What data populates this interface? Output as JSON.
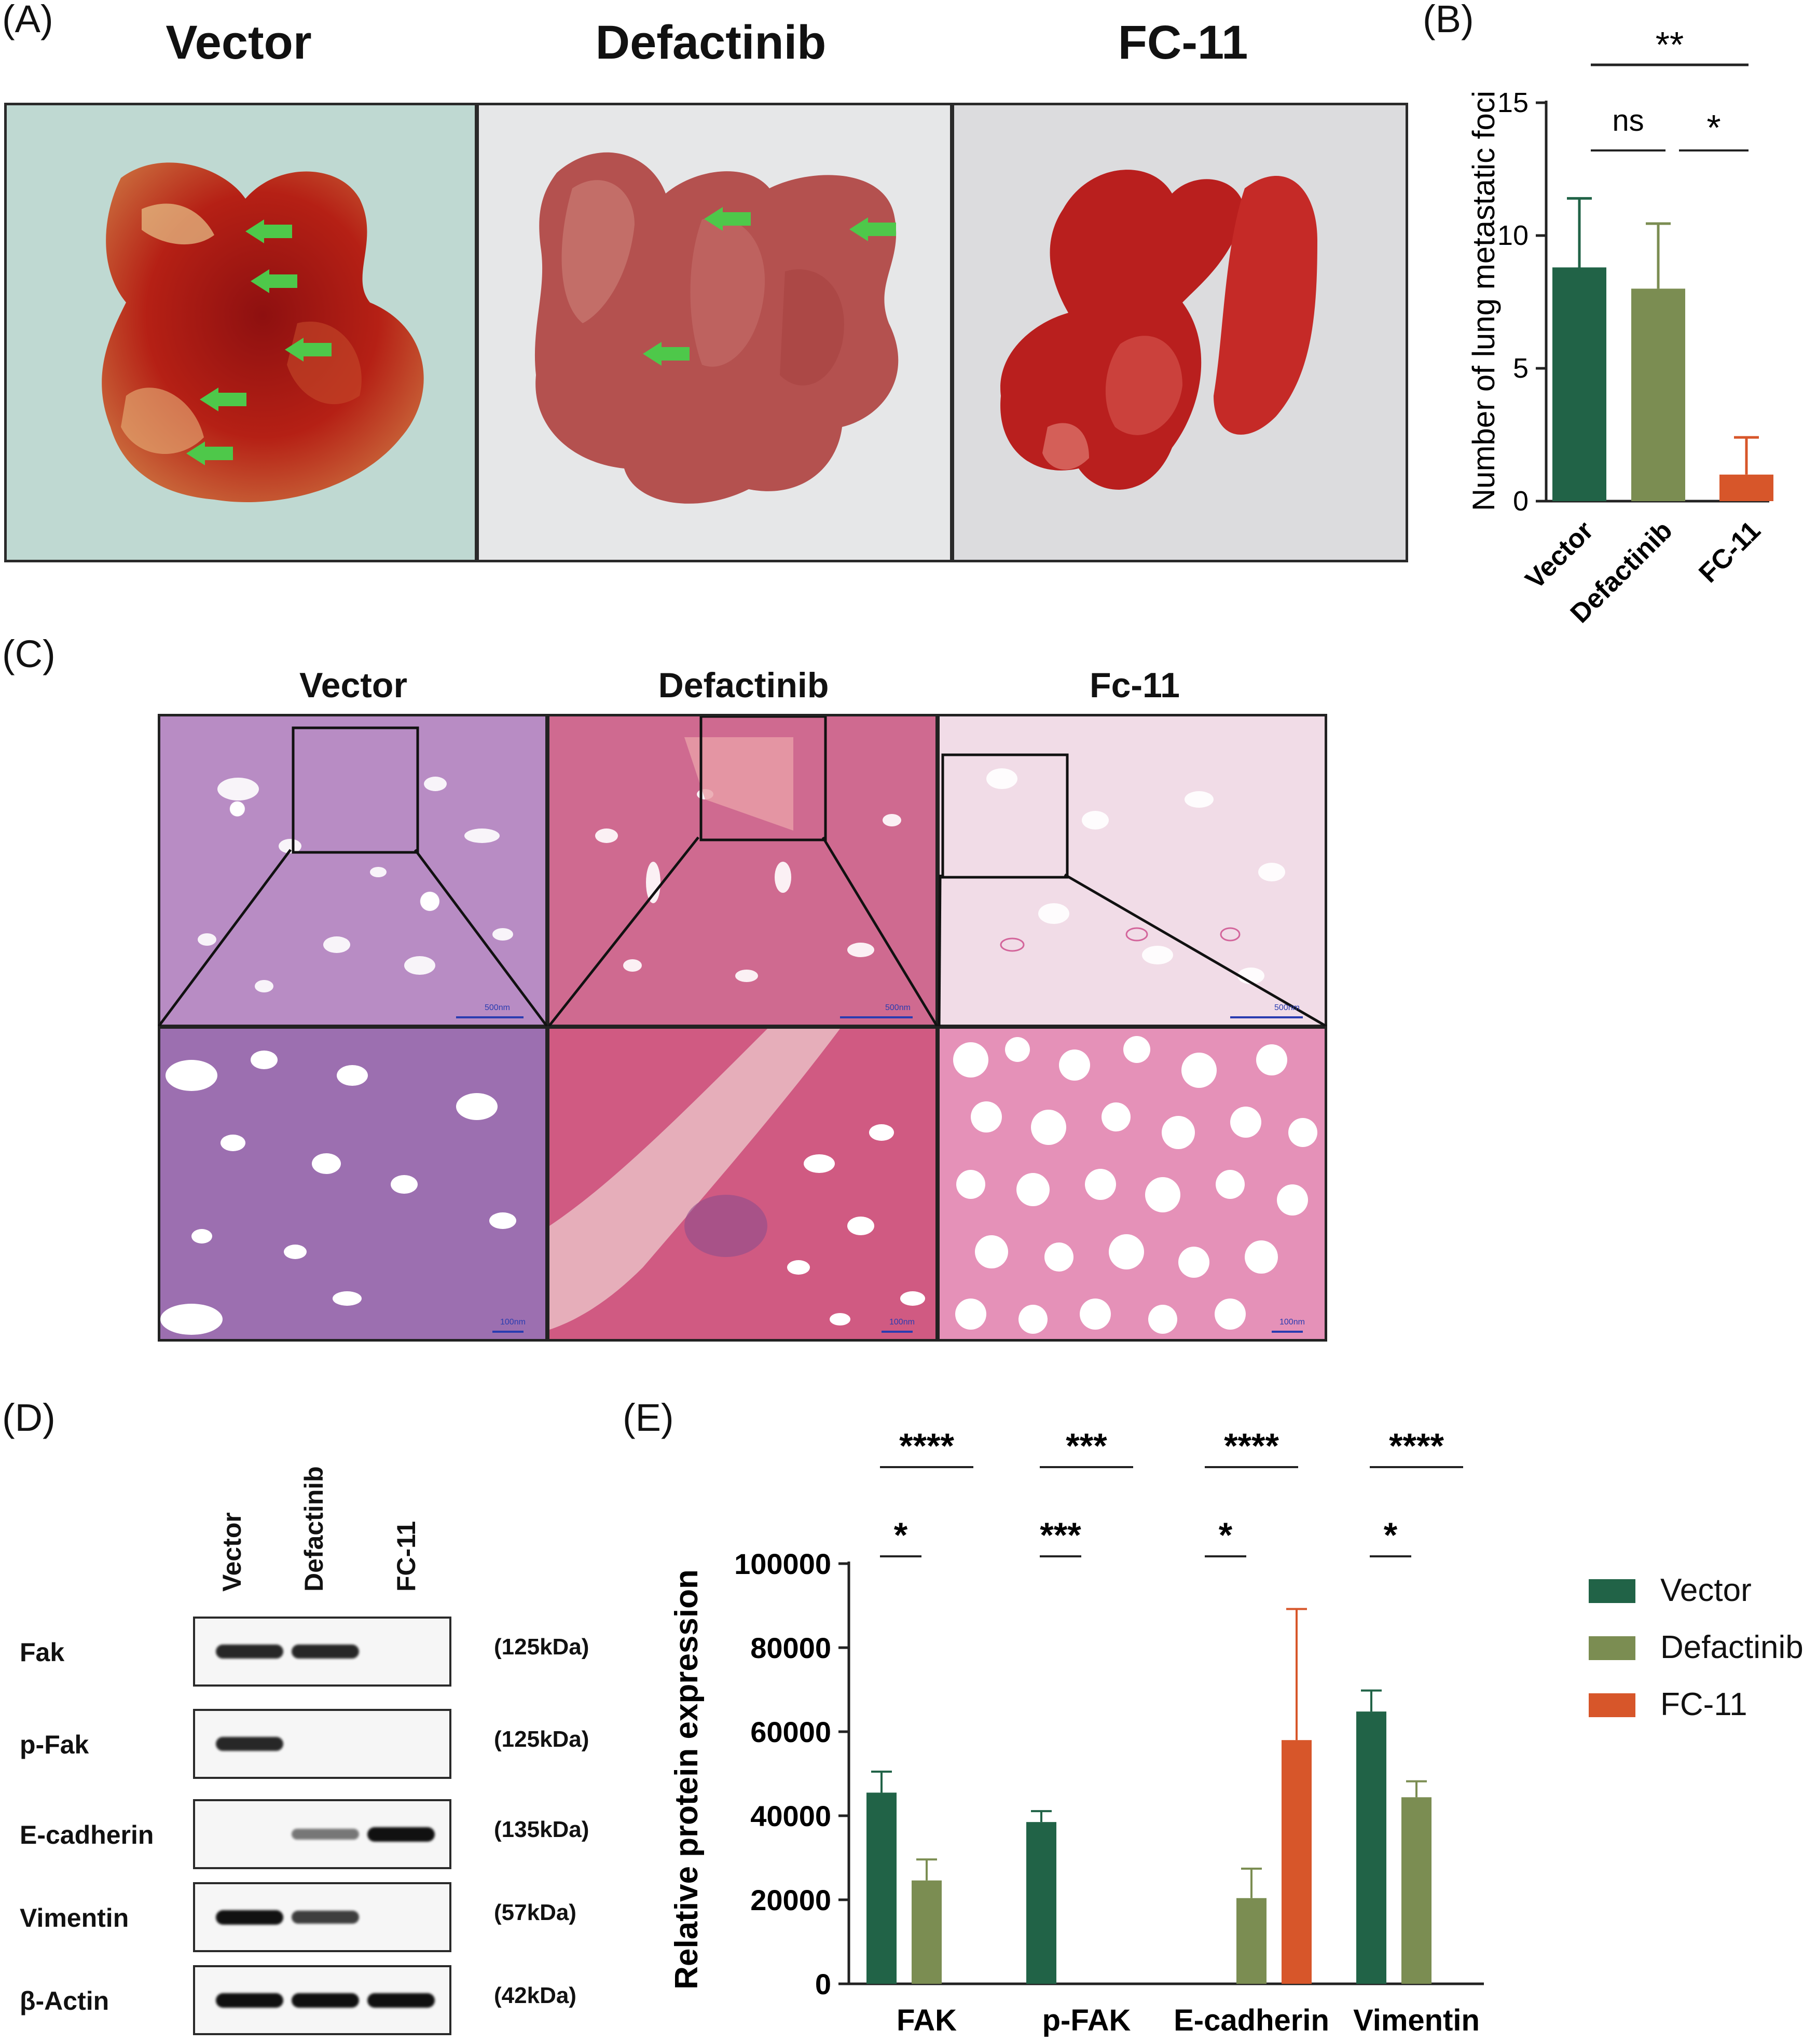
{
  "panels": {
    "A": "(A)",
    "B": "(B)",
    "C": "(C)",
    "D": "(D)",
    "E": "(E)"
  },
  "panel_a": {
    "titles": [
      "Vector",
      "Defactinib",
      "FC-11"
    ]
  },
  "panel_c": {
    "titles": [
      "Vector",
      "Defactinib",
      "Fc-11"
    ],
    "scale_top": "500nm",
    "scale_bottom": "100nm"
  },
  "panel_d": {
    "lanes": [
      "Vector",
      "Defactinib",
      "FC-11"
    ],
    "rows": [
      {
        "protein": "Fak",
        "kda": "(125kDa)",
        "bands": [
          0.9,
          0.9,
          0.0
        ]
      },
      {
        "protein": "p-Fak",
        "kda": "(125kDa)",
        "bands": [
          0.9,
          0.0,
          0.0
        ]
      },
      {
        "protein": "E-cadherin",
        "kda": "(135kDa)",
        "bands": [
          0.0,
          0.55,
          1.0
        ]
      },
      {
        "protein": "Vimentin",
        "kda": "(57kDa)",
        "bands": [
          1.0,
          0.8,
          0.0
        ]
      },
      {
        "protein": "β-Actin",
        "kda": "(42kDa)",
        "bands": [
          1.0,
          1.0,
          1.0
        ]
      }
    ]
  },
  "colors": {
    "vector": "#216347",
    "defactinib": "#7b8d52",
    "fc11": "#d7562a"
  },
  "chart_data": [
    {
      "type": "bar",
      "categories": [
        "Vector",
        "Defactinib",
        "FC-11"
      ],
      "values": [
        8.8,
        8.0,
        1.0
      ],
      "errors": [
        2.6,
        2.45,
        1.4
      ],
      "ylabel": "Number of lung metastatic foci",
      "ylim": [
        0,
        15
      ],
      "yticks": [
        "0",
        "5",
        "10",
        "15"
      ],
      "annotations": [
        {
          "text": "**",
          "from": "Vector",
          "to": "FC-11"
        },
        {
          "text": "ns",
          "from": "Vector",
          "to": "Defactinib"
        },
        {
          "text": "*",
          "from": "Defactinib",
          "to": "FC-11"
        }
      ]
    },
    {
      "type": "bar",
      "categories": [
        "FAK",
        "p-FAK",
        "E-cadherin",
        "Vimentin"
      ],
      "series": [
        {
          "name": "Vector",
          "values": [
            45500,
            38500,
            0,
            64800
          ],
          "errors": [
            5000,
            2600,
            0,
            5000
          ]
        },
        {
          "name": "Defactinib",
          "values": [
            24600,
            0,
            20400,
            44400
          ],
          "errors": [
            5000,
            0,
            7000,
            3800
          ]
        },
        {
          "name": "FC-11",
          "values": [
            0,
            0,
            58000,
            0
          ],
          "errors": [
            0,
            0,
            31200,
            0
          ]
        }
      ],
      "ylabel": "Relative protein expression",
      "ylim": [
        0,
        100000
      ],
      "yticks": [
        "0",
        "20000",
        "40000",
        "60000",
        "80000",
        "100000"
      ],
      "annotations_top": [
        "****",
        "***",
        "****",
        "****"
      ],
      "annotations_bottom": [
        "*",
        "***",
        "*",
        "*"
      ]
    }
  ]
}
